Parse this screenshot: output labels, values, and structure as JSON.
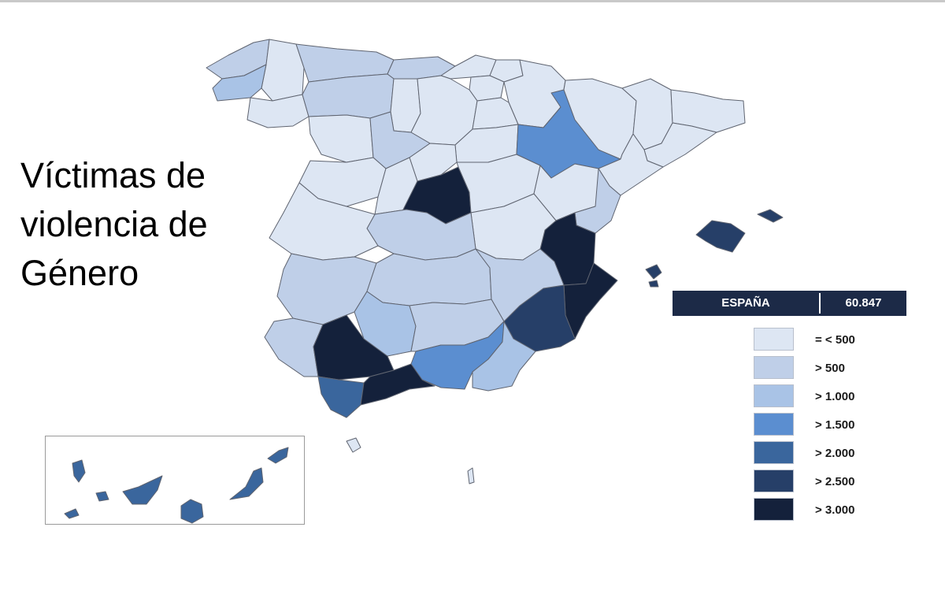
{
  "title": {
    "line1": "Víctimas de",
    "line2": "violencia de",
    "line3": "Género"
  },
  "total": {
    "label": "ESPAÑA",
    "value": "60.847"
  },
  "legend": [
    {
      "label": "= < 500",
      "color": "#dde6f3"
    },
    {
      "label": "> 500",
      "color": "#bfcfe8"
    },
    {
      "label": "> 1.000",
      "color": "#a9c3e6"
    },
    {
      "label": "> 1.500",
      "color": "#5b8ed0"
    },
    {
      "label": "> 2.000",
      "color": "#3a669d"
    },
    {
      "label": "> 2.500",
      "color": "#263f68"
    },
    {
      "label": "> 3.000",
      "color": "#14213b"
    }
  ],
  "colors": {
    "map_stroke": "#5f6470",
    "total_bar": "#1c2a47"
  }
}
